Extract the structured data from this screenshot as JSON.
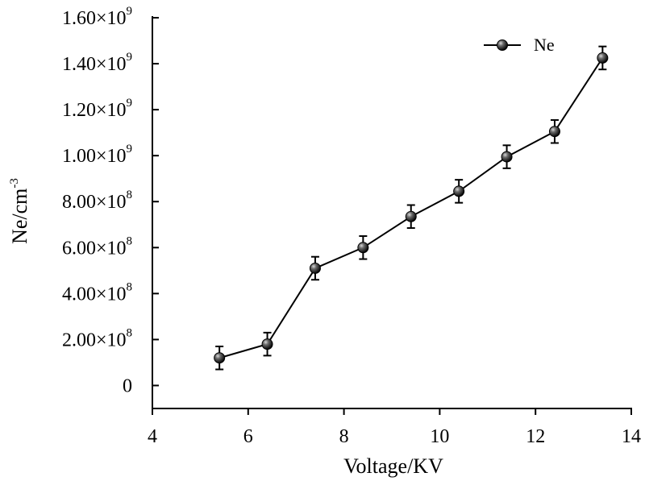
{
  "chart_data": {
    "type": "line",
    "title": "",
    "xlabel": "Voltage/KV",
    "ylabel": {
      "base": "Ne/cm",
      "exponent": "-3"
    },
    "xlim": [
      4,
      14
    ],
    "ylim": [
      -100000000,
      1600000000
    ],
    "grid": false,
    "legend_position": "top-right",
    "x_ticks": [
      {
        "value": 4,
        "label": "4"
      },
      {
        "value": 6,
        "label": "6"
      },
      {
        "value": 8,
        "label": "8"
      },
      {
        "value": 10,
        "label": "10"
      },
      {
        "value": 12,
        "label": "12"
      },
      {
        "value": 14,
        "label": "14"
      }
    ],
    "y_ticks": [
      {
        "value": 0,
        "mantissa": "0",
        "exponent": ""
      },
      {
        "value": 200000000,
        "mantissa": "2.00×10",
        "exponent": "8"
      },
      {
        "value": 400000000,
        "mantissa": "4.00×10",
        "exponent": "8"
      },
      {
        "value": 600000000,
        "mantissa": "6.00×10",
        "exponent": "8"
      },
      {
        "value": 800000000,
        "mantissa": "8.00×10",
        "exponent": "8"
      },
      {
        "value": 1000000000,
        "mantissa": "1.00×10",
        "exponent": "9"
      },
      {
        "value": 1200000000,
        "mantissa": "1.20×10",
        "exponent": "9"
      },
      {
        "value": 1400000000,
        "mantissa": "1.40×10",
        "exponent": "9"
      },
      {
        "value": 1600000000,
        "mantissa": "1.60×10",
        "exponent": "9"
      }
    ],
    "series": [
      {
        "name": "Ne",
        "color": "#000000",
        "marker": "sphere",
        "x": [
          5.4,
          6.4,
          7.4,
          8.4,
          9.4,
          10.4,
          11.4,
          12.4,
          13.4
        ],
        "y": [
          120000000,
          180000000,
          510000000,
          600000000,
          735000000,
          845000000,
          995000000,
          1105000000,
          1425000000
        ],
        "error": [
          50000000,
          50000000,
          50000000,
          50000000,
          50000000,
          50000000,
          50000000,
          50000000,
          50000000
        ]
      }
    ]
  }
}
